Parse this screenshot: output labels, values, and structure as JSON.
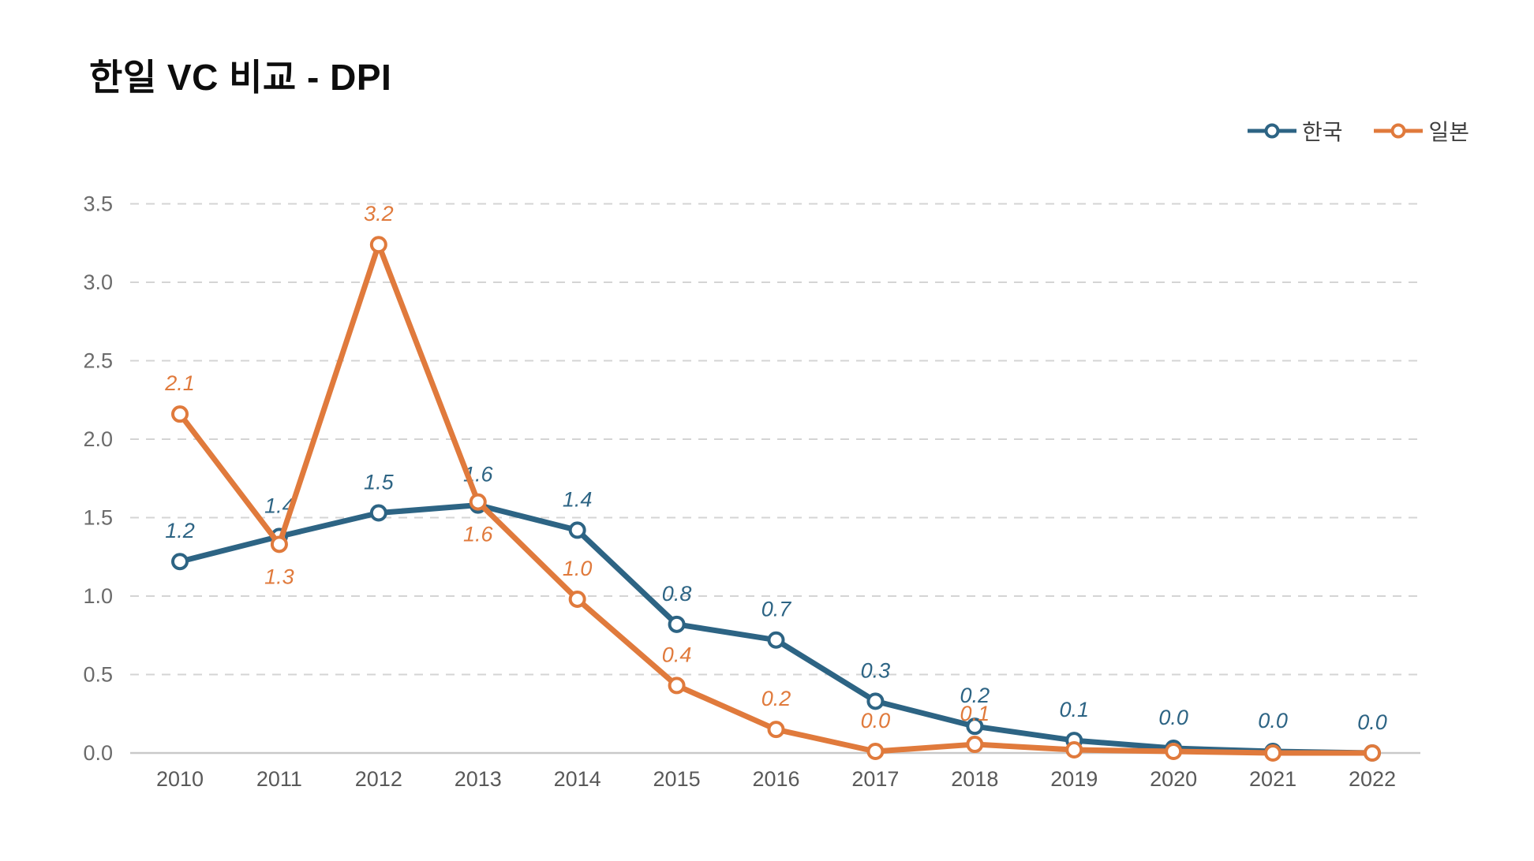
{
  "title": "한일 VC 비교 - DPI",
  "chart_data": {
    "type": "line",
    "title": "한일 VC 비교 - DPI",
    "xlabel": "",
    "ylabel": "",
    "categories": [
      "2010",
      "2011",
      "2012",
      "2013",
      "2014",
      "2015",
      "2016",
      "2017",
      "2018",
      "2019",
      "2020",
      "2021",
      "2022"
    ],
    "series": [
      {
        "name": "한국",
        "color": "#2d6484",
        "values": [
          1.2,
          1.4,
          1.5,
          1.6,
          1.4,
          0.8,
          0.7,
          0.3,
          0.2,
          0.1,
          0.0,
          0.0,
          0.0
        ],
        "labels": [
          "1.2",
          "1.4",
          "1.5",
          "1.6",
          "1.4",
          "0.8",
          "0.7",
          "0.3",
          "0.2",
          "0.1",
          "0.0",
          "0.0",
          "0.0"
        ],
        "plot_values": [
          1.22,
          1.38,
          1.53,
          1.58,
          1.42,
          0.82,
          0.72,
          0.33,
          0.17,
          0.08,
          0.03,
          0.01,
          0.0
        ],
        "label_positions": [
          "above",
          "above",
          "above",
          "above",
          "above",
          "above",
          "above",
          "above",
          "above",
          "above",
          "above",
          "above",
          "above"
        ]
      },
      {
        "name": "일본",
        "color": "#e07a3c",
        "values": [
          2.1,
          1.3,
          3.2,
          1.6,
          1.0,
          0.4,
          0.2,
          0.0,
          0.1,
          0.0,
          0.0,
          0.0,
          0.0
        ],
        "labels": [
          "2.1",
          "1.3",
          "3.2",
          "1.6",
          "1.0",
          "0.4",
          "0.2",
          "0.0",
          "0.1",
          "",
          "",
          "",
          ""
        ],
        "plot_values": [
          2.16,
          1.33,
          3.24,
          1.6,
          0.98,
          0.43,
          0.15,
          0.01,
          0.055,
          0.02,
          0.01,
          0.0,
          0.0
        ],
        "label_positions": [
          "above",
          "below",
          "above",
          "below",
          "above",
          "above",
          "above",
          "above",
          "above",
          "",
          "",
          "",
          ""
        ]
      }
    ],
    "ylim": [
      0,
      3.5
    ],
    "yticks": [
      0,
      0.5,
      1.0,
      1.5,
      2.0,
      2.5,
      3.0,
      3.5
    ],
    "ytick_labels": [
      "0.0",
      "0.5",
      "1.0",
      "1.5",
      "2.0",
      "2.5",
      "3.0",
      "3.5"
    ],
    "grid": "horizontal-dashed",
    "legend_position": "top-right"
  },
  "colors": {
    "korea": "#2d6484",
    "japan": "#e07a3c",
    "gridline": "#d4d4d4",
    "axis_line": "#c9c9c9",
    "tick_text": "#5f5f5f",
    "title_text": "#0d0d0d"
  }
}
